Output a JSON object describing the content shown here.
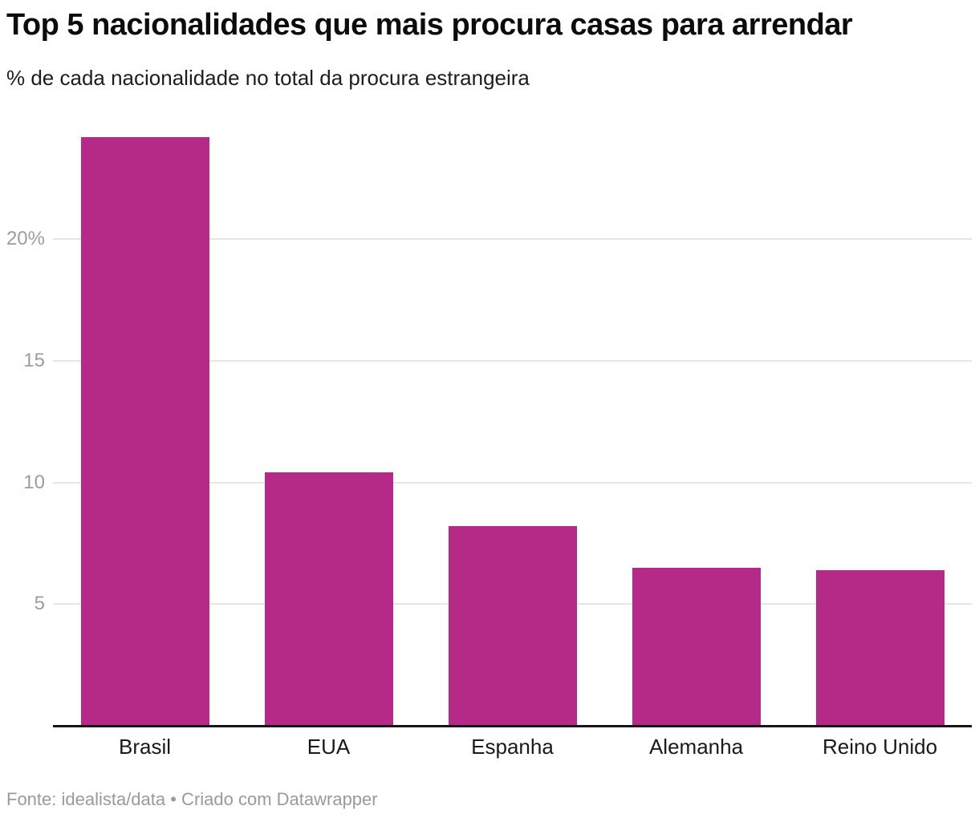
{
  "chart_data": {
    "type": "bar",
    "title": "Top 5 nacionalidades que mais procura casas para arrendar",
    "subtitle": "% de cada nacionalidade no total da procura estrangeira",
    "categories": [
      "Brasil",
      "EUA",
      "Espanha",
      "Alemanha",
      "Reino Unido"
    ],
    "values": [
      24.2,
      10.4,
      8.2,
      6.5,
      6.4
    ],
    "unit": "%",
    "ylim": [
      0,
      24.2
    ],
    "yticks": [
      {
        "value": 5,
        "label": "5"
      },
      {
        "value": 10,
        "label": "10"
      },
      {
        "value": 15,
        "label": "15"
      },
      {
        "value": 20,
        "label": "20%"
      }
    ],
    "grid": "horizontal",
    "legend": "none",
    "bar_color": "#b62a87",
    "gridline_color": "#e6e6e6",
    "axis_line_color": "#161616",
    "tick_label_color": "#9d9d9d",
    "source": "Fonte: idealista/data • Criado com Datawrapper"
  }
}
